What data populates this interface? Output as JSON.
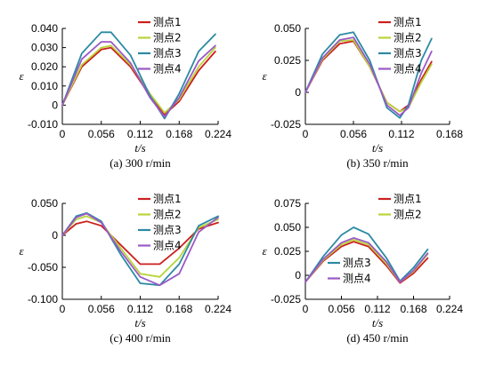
{
  "chart_data": [
    {
      "type": "line",
      "caption": "(a) 300 r/min",
      "xlabel": "t/s",
      "ylabel": "ε",
      "xlim": [
        0,
        0.224
      ],
      "ylim": [
        -0.01,
        0.04
      ],
      "xticks": [
        "0",
        "0.056",
        "0.112",
        "0.168",
        "0.224"
      ],
      "yticks": [
        "-0.010",
        "0",
        "0.010",
        "0.020",
        "0.030",
        "0.040"
      ],
      "legend": "top-right",
      "series": [
        {
          "name": "测点1",
          "color": "#cc1f1f",
          "x": [
            0,
            0.028,
            0.056,
            0.07,
            0.098,
            0.126,
            0.147,
            0.168,
            0.196,
            0.22
          ],
          "y": [
            0,
            0.02,
            0.029,
            0.03,
            0.02,
            0.005,
            -0.005,
            0.002,
            0.018,
            0.028
          ]
        },
        {
          "name": "测点2",
          "color": "#b8d43a",
          "x": [
            0,
            0.028,
            0.056,
            0.07,
            0.098,
            0.126,
            0.147,
            0.168,
            0.196,
            0.22
          ],
          "y": [
            0,
            0.021,
            0.03,
            0.031,
            0.021,
            0.006,
            -0.004,
            0.003,
            0.02,
            0.03
          ]
        },
        {
          "name": "测点3",
          "color": "#2c8aa3",
          "x": [
            0,
            0.028,
            0.056,
            0.07,
            0.098,
            0.126,
            0.147,
            0.168,
            0.196,
            0.22
          ],
          "y": [
            0,
            0.027,
            0.038,
            0.038,
            0.026,
            0.005,
            -0.007,
            0.006,
            0.028,
            0.037
          ]
        },
        {
          "name": "测点4",
          "color": "#9b59c6",
          "x": [
            0,
            0.028,
            0.056,
            0.07,
            0.098,
            0.126,
            0.147,
            0.168,
            0.196,
            0.22
          ],
          "y": [
            0,
            0.024,
            0.033,
            0.033,
            0.022,
            0.004,
            -0.006,
            0.004,
            0.023,
            0.031
          ]
        }
      ]
    },
    {
      "type": "line",
      "caption": "(b) 350 r/min",
      "xlabel": "t/s",
      "ylabel": "ε",
      "xlim": [
        0,
        0.168
      ],
      "ylim": [
        -0.025,
        0.05
      ],
      "xticks": [
        "0",
        "0.056",
        "0.112",
        "0.168"
      ],
      "yticks": [
        "-0.025",
        "0",
        "0.025",
        "0.050"
      ],
      "legend": "top-right",
      "series": [
        {
          "name": "测点1",
          "color": "#cc1f1f",
          "x": [
            0,
            0.02,
            0.04,
            0.056,
            0.075,
            0.095,
            0.11,
            0.12,
            0.135,
            0.147
          ],
          "y": [
            0,
            0.025,
            0.038,
            0.04,
            0.02,
            -0.008,
            -0.015,
            -0.01,
            0.01,
            0.024
          ]
        },
        {
          "name": "测点2",
          "color": "#b8d43a",
          "x": [
            0,
            0.02,
            0.04,
            0.056,
            0.075,
            0.095,
            0.11,
            0.12,
            0.135,
            0.147
          ],
          "y": [
            0,
            0.026,
            0.04,
            0.041,
            0.02,
            -0.008,
            -0.015,
            -0.012,
            0.008,
            0.022
          ]
        },
        {
          "name": "测点3",
          "color": "#2c8aa3",
          "x": [
            0,
            0.02,
            0.04,
            0.056,
            0.075,
            0.095,
            0.11,
            0.12,
            0.135,
            0.147
          ],
          "y": [
            0,
            0.03,
            0.045,
            0.047,
            0.025,
            -0.012,
            -0.02,
            -0.01,
            0.025,
            0.042
          ]
        },
        {
          "name": "测点4",
          "color": "#9b59c6",
          "x": [
            0,
            0.02,
            0.04,
            0.056,
            0.075,
            0.095,
            0.11,
            0.12,
            0.135,
            0.147
          ],
          "y": [
            0,
            0.027,
            0.041,
            0.043,
            0.022,
            -0.01,
            -0.018,
            -0.012,
            0.015,
            0.032
          ]
        }
      ]
    },
    {
      "type": "line",
      "caption": "(c) 400 r/min",
      "xlabel": "t/s",
      "ylabel": "ε",
      "xlim": [
        0,
        0.224
      ],
      "ylim": [
        -0.1,
        0.05
      ],
      "xticks": [
        "0",
        "0.056",
        "0.112",
        "0.168",
        "0.224"
      ],
      "yticks": [
        "-0.100",
        "-0.050",
        "0",
        "0.050"
      ],
      "legend": "top-right",
      "series": [
        {
          "name": "测点1",
          "color": "#cc1f1f",
          "x": [
            0,
            0.02,
            0.035,
            0.056,
            0.084,
            0.112,
            0.14,
            0.168,
            0.196,
            0.224
          ],
          "y": [
            0,
            0.018,
            0.022,
            0.015,
            -0.015,
            -0.045,
            -0.045,
            -0.02,
            0.01,
            0.02
          ]
        },
        {
          "name": "测点2",
          "color": "#b8d43a",
          "x": [
            0,
            0.02,
            0.035,
            0.056,
            0.084,
            0.112,
            0.14,
            0.168,
            0.196,
            0.224
          ],
          "y": [
            0,
            0.025,
            0.03,
            0.02,
            -0.02,
            -0.06,
            -0.065,
            -0.035,
            0.012,
            0.025
          ]
        },
        {
          "name": "测点3",
          "color": "#2c8aa3",
          "x": [
            0,
            0.02,
            0.035,
            0.056,
            0.084,
            0.112,
            0.14,
            0.168,
            0.196,
            0.224
          ],
          "y": [
            0,
            0.03,
            0.035,
            0.022,
            -0.03,
            -0.075,
            -0.078,
            -0.045,
            0.015,
            0.03
          ]
        },
        {
          "name": "测点4",
          "color": "#9b59c6",
          "x": [
            0,
            0.02,
            0.035,
            0.056,
            0.084,
            0.112,
            0.14,
            0.168,
            0.196,
            0.224
          ],
          "y": [
            0,
            0.028,
            0.034,
            0.02,
            -0.025,
            -0.065,
            -0.078,
            -0.06,
            0.005,
            0.028
          ]
        }
      ]
    },
    {
      "type": "line",
      "caption": "(d) 450 r/min",
      "xlabel": "t/s",
      "ylabel": "ε",
      "xlim": [
        0,
        0.224
      ],
      "ylim": [
        -0.025,
        0.075
      ],
      "xticks": [
        "0",
        "0.056",
        "0.112",
        "0.168",
        "0.224"
      ],
      "yticks": [
        "-0.025",
        "0",
        "0.025",
        "0.050",
        "0.075"
      ],
      "legend": "top-right, bottom-left",
      "series": [
        {
          "name": "测点1",
          "color": "#cc1f1f",
          "x": [
            0,
            0.028,
            0.056,
            0.075,
            0.098,
            0.126,
            0.147,
            0.168,
            0.19
          ],
          "y": [
            -0.007,
            0.015,
            0.03,
            0.035,
            0.03,
            0.01,
            -0.008,
            0.002,
            0.018
          ]
        },
        {
          "name": "测点2",
          "color": "#b8d43a",
          "x": [
            0,
            0.028,
            0.056,
            0.075,
            0.098,
            0.126,
            0.147,
            0.168,
            0.19
          ],
          "y": [
            -0.007,
            0.016,
            0.032,
            0.037,
            0.032,
            0.012,
            -0.007,
            0.004,
            0.022
          ]
        },
        {
          "name": "测点3",
          "color": "#2c8aa3",
          "x": [
            0,
            0.028,
            0.056,
            0.075,
            0.098,
            0.126,
            0.147,
            0.168,
            0.19
          ],
          "y": [
            -0.007,
            0.02,
            0.042,
            0.05,
            0.043,
            0.018,
            -0.006,
            0.008,
            0.027
          ]
        },
        {
          "name": "测点4",
          "color": "#9b59c6",
          "x": [
            0,
            0.028,
            0.056,
            0.075,
            0.098,
            0.126,
            0.147,
            0.168,
            0.19
          ],
          "y": [
            -0.007,
            0.017,
            0.034,
            0.039,
            0.034,
            0.014,
            -0.007,
            0.005,
            0.023
          ]
        }
      ]
    }
  ]
}
